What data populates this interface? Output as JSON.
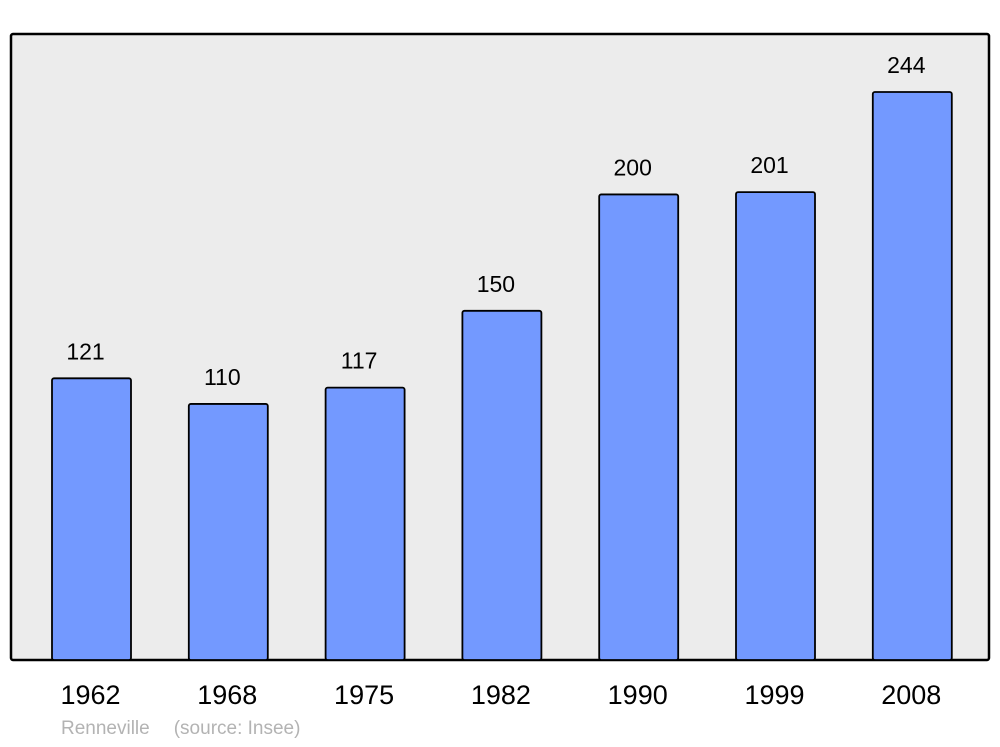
{
  "chart_data": {
    "type": "bar",
    "title": "",
    "xlabel": "",
    "ylabel": "",
    "categories": [
      "1962",
      "1968",
      "1975",
      "1982",
      "1990",
      "1999",
      "2008"
    ],
    "values": [
      121,
      110,
      117,
      150,
      200,
      201,
      244
    ],
    "data_labels": true,
    "grid": false,
    "legend": "none",
    "colors": {
      "bar": "#7399ff",
      "bar_stroke": "#000000",
      "plot_background": "#ececec",
      "frame": "#000000"
    }
  },
  "footer": {
    "place": "Renneville",
    "source": "(source: Insee)"
  }
}
